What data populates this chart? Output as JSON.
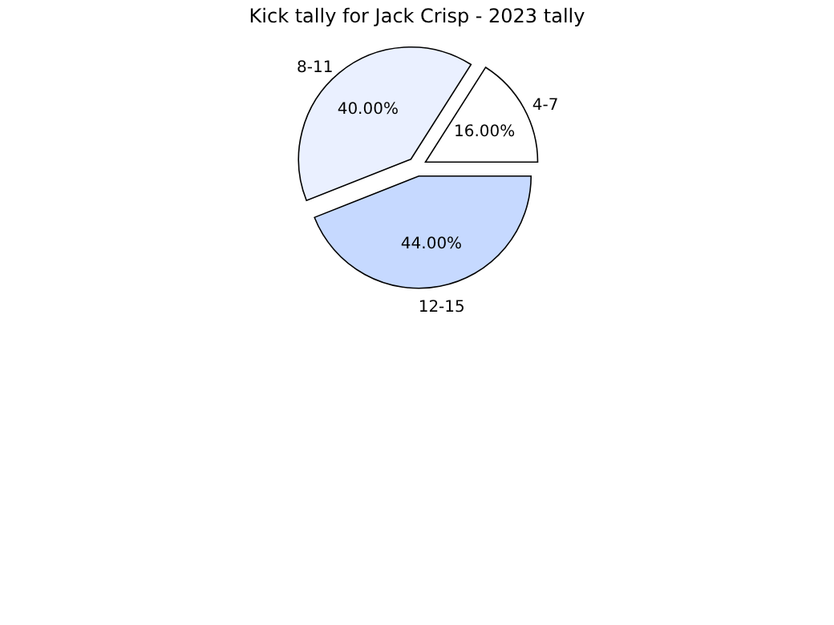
{
  "chart_data": {
    "type": "pie",
    "title": "Kick tally for Jack Crisp - 2023 tally",
    "categories": [
      "4-7",
      "8-11",
      "12-15"
    ],
    "values": [
      16,
      40,
      44
    ],
    "value_labels": [
      "16.00%",
      "40.00%",
      "44.00%"
    ],
    "colors": [
      "#ffffff",
      "#eaf0ff",
      "#c6d9ff"
    ]
  }
}
